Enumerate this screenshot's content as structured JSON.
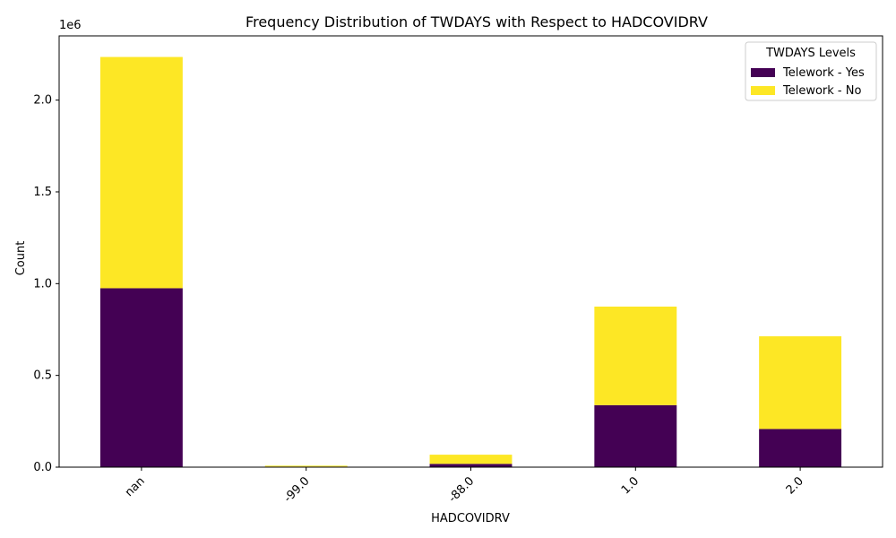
{
  "chart_data": {
    "type": "bar",
    "stacked": true,
    "title": "Frequency Distribution of TWDAYS with Respect to HADCOVIDRV",
    "xlabel": "HADCOVIDRV",
    "ylabel": "Count",
    "scale_label": "1e6",
    "categories": [
      "nan",
      "-99.0",
      "-88.0",
      "1.0",
      "2.0"
    ],
    "series": [
      {
        "name": "Telework - Yes",
        "color": "#440154",
        "values": [
          975000,
          3000,
          18000,
          338000,
          208000
        ]
      },
      {
        "name": "Telework - No",
        "color": "#fde725",
        "values": [
          1260000,
          5000,
          50000,
          537000,
          505000
        ]
      }
    ],
    "ylim": [
      0,
      2350000
    ],
    "yticks": [
      0,
      500000,
      1000000,
      1500000,
      2000000
    ],
    "ytick_labels": [
      "0.0",
      "0.5",
      "1.0",
      "1.5",
      "2.0"
    ],
    "legend": {
      "title": "TWDAYS Levels",
      "position": "top-right"
    },
    "grid": false
  }
}
